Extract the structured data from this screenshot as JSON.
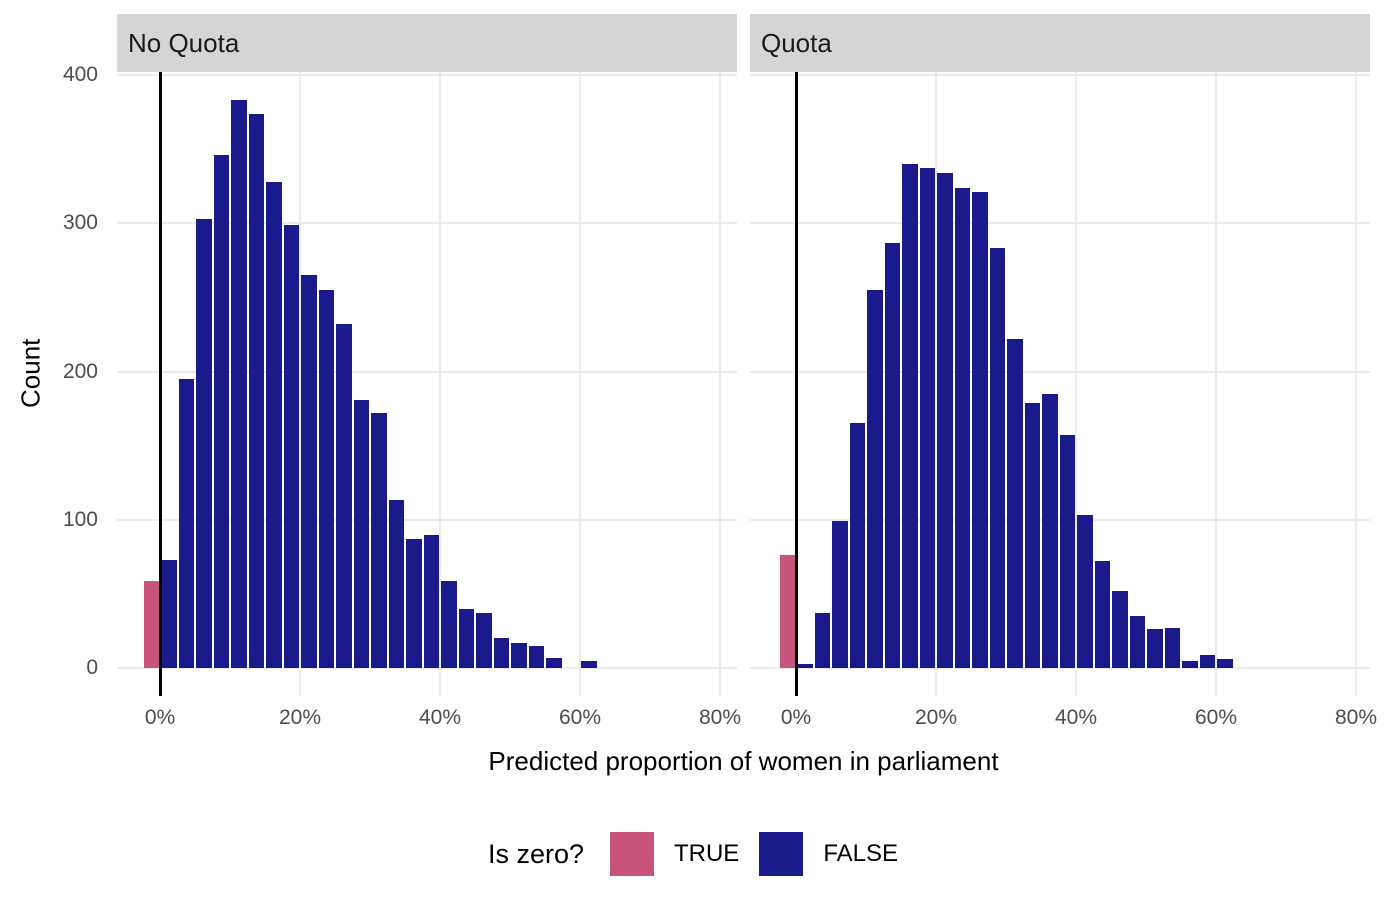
{
  "chart_data": {
    "type": "bar",
    "subtype": "faceted-histogram",
    "xlabel": "Predicted proportion of women in parliament",
    "ylabel": "Count",
    "y_ticks": [
      0,
      100,
      200,
      300,
      400
    ],
    "ylim": [
      0,
      400
    ],
    "x_tick_labels": [
      "0%",
      "20%",
      "40%",
      "60%",
      "80%"
    ],
    "x_tick_values": [
      0,
      20,
      40,
      60,
      80
    ],
    "bin_width_percent": 2.5,
    "reference_line_x_percent": 0,
    "grid": "major-only",
    "legend_position": "bottom",
    "legend": {
      "title": "Is zero?",
      "items": [
        {
          "label": "TRUE",
          "color": "#C8537B"
        },
        {
          "label": "FALSE",
          "color": "#1A1A8C"
        }
      ]
    },
    "facets": [
      {
        "label": "No Quota",
        "bins": [
          {
            "x0": -2.5,
            "x1": 0,
            "count": 59,
            "group": "TRUE"
          },
          {
            "x0": 0,
            "x1": 2.5,
            "count": 73,
            "group": "FALSE"
          },
          {
            "x0": 2.5,
            "x1": 5,
            "count": 195,
            "group": "FALSE"
          },
          {
            "x0": 5,
            "x1": 7.5,
            "count": 303,
            "group": "FALSE"
          },
          {
            "x0": 7.5,
            "x1": 10,
            "count": 346,
            "group": "FALSE"
          },
          {
            "x0": 10,
            "x1": 12.5,
            "count": 383,
            "group": "FALSE"
          },
          {
            "x0": 12.5,
            "x1": 15,
            "count": 374,
            "group": "FALSE"
          },
          {
            "x0": 15,
            "x1": 17.5,
            "count": 328,
            "group": "FALSE"
          },
          {
            "x0": 17.5,
            "x1": 20,
            "count": 299,
            "group": "FALSE"
          },
          {
            "x0": 20,
            "x1": 22.5,
            "count": 265,
            "group": "FALSE"
          },
          {
            "x0": 22.5,
            "x1": 25,
            "count": 255,
            "group": "FALSE"
          },
          {
            "x0": 25,
            "x1": 27.5,
            "count": 232,
            "group": "FALSE"
          },
          {
            "x0": 27.5,
            "x1": 30,
            "count": 181,
            "group": "FALSE"
          },
          {
            "x0": 30,
            "x1": 32.5,
            "count": 172,
            "group": "FALSE"
          },
          {
            "x0": 32.5,
            "x1": 35,
            "count": 113,
            "group": "FALSE"
          },
          {
            "x0": 35,
            "x1": 37.5,
            "count": 87,
            "group": "FALSE"
          },
          {
            "x0": 37.5,
            "x1": 40,
            "count": 90,
            "group": "FALSE"
          },
          {
            "x0": 40,
            "x1": 42.5,
            "count": 59,
            "group": "FALSE"
          },
          {
            "x0": 42.5,
            "x1": 45,
            "count": 40,
            "group": "FALSE"
          },
          {
            "x0": 45,
            "x1": 47.5,
            "count": 37,
            "group": "FALSE"
          },
          {
            "x0": 47.5,
            "x1": 50,
            "count": 20,
            "group": "FALSE"
          },
          {
            "x0": 50,
            "x1": 52.5,
            "count": 17,
            "group": "FALSE"
          },
          {
            "x0": 52.5,
            "x1": 55,
            "count": 15,
            "group": "FALSE"
          },
          {
            "x0": 55,
            "x1": 57.5,
            "count": 7,
            "group": "FALSE"
          },
          {
            "x0": 57.5,
            "x1": 60,
            "count": 0,
            "group": "FALSE"
          },
          {
            "x0": 60,
            "x1": 62.5,
            "count": 5,
            "group": "FALSE"
          }
        ]
      },
      {
        "label": "Quota",
        "bins": [
          {
            "x0": -2.5,
            "x1": 0,
            "count": 76,
            "group": "TRUE"
          },
          {
            "x0": 0,
            "x1": 2.5,
            "count": 3,
            "group": "FALSE"
          },
          {
            "x0": 2.5,
            "x1": 5,
            "count": 37,
            "group": "FALSE"
          },
          {
            "x0": 5,
            "x1": 7.5,
            "count": 99,
            "group": "FALSE"
          },
          {
            "x0": 7.5,
            "x1": 10,
            "count": 165,
            "group": "FALSE"
          },
          {
            "x0": 10,
            "x1": 12.5,
            "count": 255,
            "group": "FALSE"
          },
          {
            "x0": 12.5,
            "x1": 15,
            "count": 287,
            "group": "FALSE"
          },
          {
            "x0": 15,
            "x1": 17.5,
            "count": 340,
            "group": "FALSE"
          },
          {
            "x0": 17.5,
            "x1": 20,
            "count": 337,
            "group": "FALSE"
          },
          {
            "x0": 20,
            "x1": 22.5,
            "count": 334,
            "group": "FALSE"
          },
          {
            "x0": 22.5,
            "x1": 25,
            "count": 324,
            "group": "FALSE"
          },
          {
            "x0": 25,
            "x1": 27.5,
            "count": 321,
            "group": "FALSE"
          },
          {
            "x0": 27.5,
            "x1": 30,
            "count": 283,
            "group": "FALSE"
          },
          {
            "x0": 30,
            "x1": 32.5,
            "count": 222,
            "group": "FALSE"
          },
          {
            "x0": 32.5,
            "x1": 35,
            "count": 179,
            "group": "FALSE"
          },
          {
            "x0": 35,
            "x1": 37.5,
            "count": 185,
            "group": "FALSE"
          },
          {
            "x0": 37.5,
            "x1": 40,
            "count": 157,
            "group": "FALSE"
          },
          {
            "x0": 40,
            "x1": 42.5,
            "count": 103,
            "group": "FALSE"
          },
          {
            "x0": 42.5,
            "x1": 45,
            "count": 72,
            "group": "FALSE"
          },
          {
            "x0": 45,
            "x1": 47.5,
            "count": 52,
            "group": "FALSE"
          },
          {
            "x0": 47.5,
            "x1": 50,
            "count": 35,
            "group": "FALSE"
          },
          {
            "x0": 50,
            "x1": 52.5,
            "count": 26,
            "group": "FALSE"
          },
          {
            "x0": 52.5,
            "x1": 55,
            "count": 27,
            "group": "FALSE"
          },
          {
            "x0": 55,
            "x1": 57.5,
            "count": 5,
            "group": "FALSE"
          },
          {
            "x0": 57.5,
            "x1": 60,
            "count": 9,
            "group": "FALSE"
          },
          {
            "x0": 60,
            "x1": 62.5,
            "count": 6,
            "group": "FALSE"
          }
        ]
      }
    ],
    "colors": {
      "true_fill": "#C8537B",
      "false_fill": "#1A1A8C",
      "strip_bg": "#D5D5D5",
      "gridline": "#EBEBEB",
      "axis_text": "#4D4D4D",
      "reference_line": "#000000"
    }
  }
}
